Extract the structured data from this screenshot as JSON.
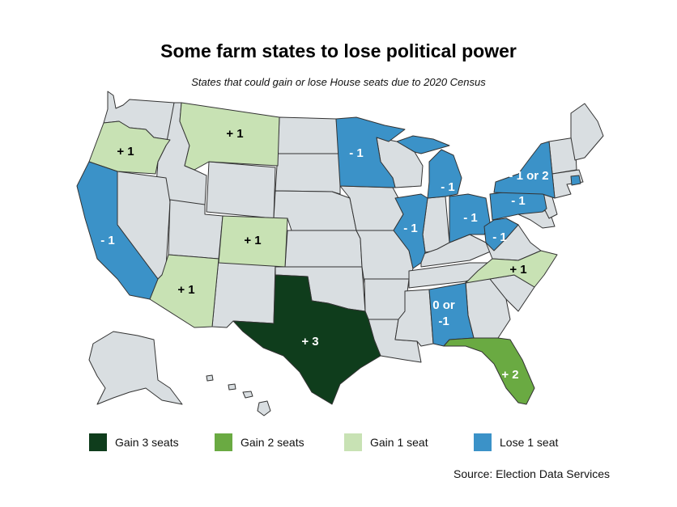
{
  "title": "Some farm states to lose political power",
  "subtitle": "States that could gain or lose House seats due to 2020 Census",
  "colors": {
    "gain3": "#0f3d1c",
    "gain2": "#6aaa42",
    "gain1": "#c8e2b4",
    "lose1": "#3b92c8",
    "neutral": "#d9dee1",
    "border": "#333333"
  },
  "legend": [
    {
      "label": "Gain 3 seats",
      "color": "#0f3d1c"
    },
    {
      "label": "Gain 2 seats",
      "color": "#6aaa42"
    },
    {
      "label": "Gain 1 seat",
      "color": "#c8e2b4"
    },
    {
      "label": "Lose 1 seat",
      "color": "#3b92c8"
    }
  ],
  "states": [
    {
      "name": "Texas",
      "change": "+ 3",
      "category": "gain3"
    },
    {
      "name": "Florida",
      "change": "+ 2",
      "category": "gain2"
    },
    {
      "name": "Oregon",
      "change": "+ 1",
      "category": "gain1"
    },
    {
      "name": "Montana",
      "change": "+ 1",
      "category": "gain1"
    },
    {
      "name": "Colorado",
      "change": "+ 1",
      "category": "gain1"
    },
    {
      "name": "Arizona",
      "change": "+ 1",
      "category": "gain1"
    },
    {
      "name": "North Carolina",
      "change": "+ 1",
      "category": "gain1"
    },
    {
      "name": "California",
      "change": "- 1",
      "category": "lose1"
    },
    {
      "name": "Minnesota",
      "change": "- 1",
      "category": "lose1"
    },
    {
      "name": "Illinois",
      "change": "- 1",
      "category": "lose1"
    },
    {
      "name": "Michigan",
      "change": "- 1",
      "category": "lose1"
    },
    {
      "name": "Ohio",
      "change": "- 1",
      "category": "lose1"
    },
    {
      "name": "West Virginia",
      "change": "- 1",
      "category": "lose1"
    },
    {
      "name": "Pennsylvania",
      "change": "- 1",
      "category": "lose1"
    },
    {
      "name": "New York",
      "change": "- 1 or 2",
      "category": "lose1"
    },
    {
      "name": "Rhode Island",
      "change": "",
      "category": "lose1"
    },
    {
      "name": "Alabama",
      "change": "0 or -1",
      "category": "lose1"
    }
  ],
  "source": "Source: Election Data Services"
}
